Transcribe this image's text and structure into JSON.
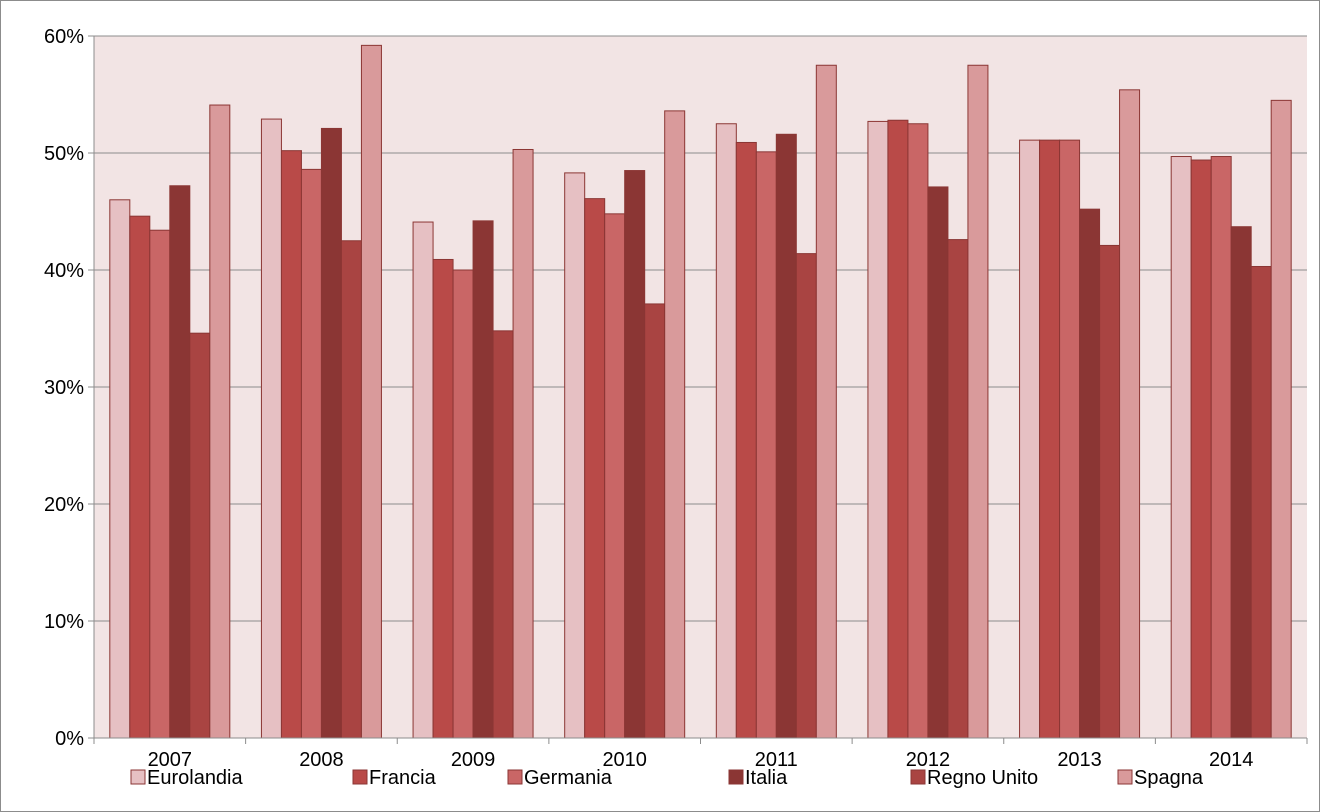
{
  "chart_data": {
    "type": "bar",
    "title": "",
    "xlabel": "",
    "ylabel": "",
    "ylim": [
      0,
      60
    ],
    "y_tick_step": 10,
    "y_tick_labels": [
      "0%",
      "10%",
      "20%",
      "30%",
      "40%",
      "50%",
      "60%"
    ],
    "grid": true,
    "legend_position": "bottom",
    "plot_background": "#f2e4e4",
    "categories": [
      "2007",
      "2008",
      "2009",
      "2010",
      "2011",
      "2012",
      "2013",
      "2014"
    ],
    "series": [
      {
        "name": "Eurolandia",
        "color": "#e6c0c3",
        "values": [
          46.0,
          52.9,
          44.1,
          48.3,
          52.5,
          52.7,
          51.1,
          49.7
        ]
      },
      {
        "name": "Francia",
        "color": "#b94a48",
        "values": [
          44.6,
          50.2,
          40.9,
          46.1,
          50.9,
          52.8,
          51.1,
          49.4
        ]
      },
      {
        "name": "Germania",
        "color": "#c96666",
        "values": [
          43.4,
          48.6,
          40.0,
          44.8,
          50.1,
          52.5,
          51.1,
          49.7
        ]
      },
      {
        "name": "Italia",
        "color": "#8b3634",
        "values": [
          47.2,
          52.1,
          44.2,
          48.5,
          51.6,
          47.1,
          45.2,
          43.7
        ]
      },
      {
        "name": "Regno Unito",
        "color": "#a94442",
        "values": [
          34.6,
          42.5,
          34.8,
          37.1,
          41.4,
          42.6,
          42.1,
          40.3
        ]
      },
      {
        "name": "Spagna",
        "color": "#d99a9b",
        "values": [
          54.1,
          59.2,
          50.3,
          53.6,
          57.5,
          57.5,
          55.4,
          54.5
        ]
      }
    ]
  }
}
